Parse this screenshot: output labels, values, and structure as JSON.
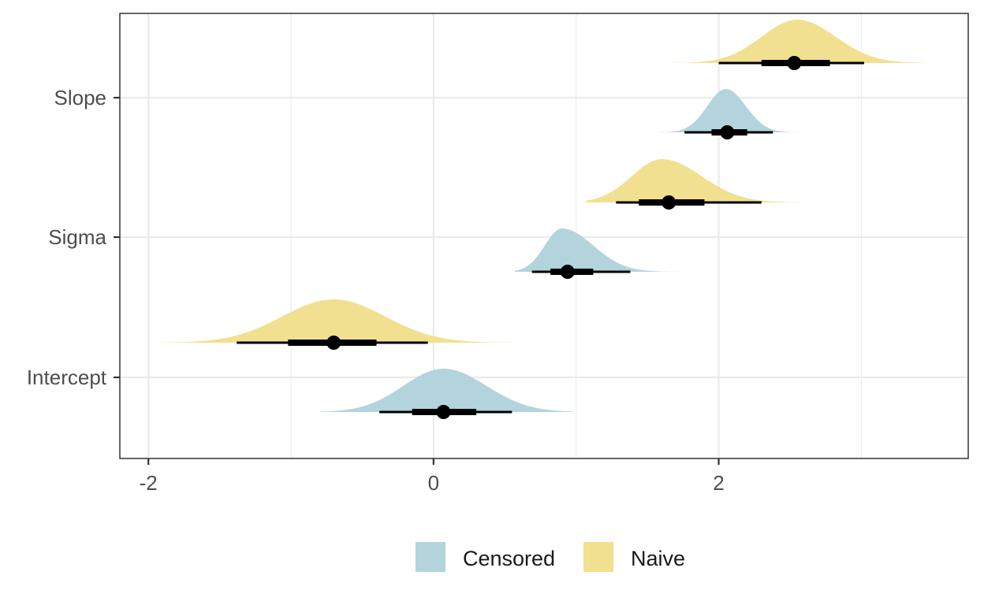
{
  "chart_data": {
    "type": "halfeye",
    "title": "",
    "xlabel": "",
    "ylabel": "",
    "xlim": [
      -2.2,
      3.75
    ],
    "x_ticks": [
      -2,
      0,
      2
    ],
    "x_tick_labels": [
      "-2",
      "0",
      "2"
    ],
    "categories": [
      "Intercept",
      "Sigma",
      "Slope"
    ],
    "grid": true,
    "legend_position": "bottom",
    "series": [
      {
        "name": "Censored",
        "color": "#b3d4dc",
        "estimates": [
          {
            "category": "Intercept",
            "median": 0.07,
            "q66": [
              -0.15,
              0.3
            ],
            "q95": [
              -0.38,
              0.55
            ],
            "density_range": [
              -0.8,
              0.97
            ],
            "peak": 0.07,
            "sd_left": 0.28,
            "sd_right": 0.3
          },
          {
            "category": "Sigma",
            "median": 0.94,
            "q66": [
              0.82,
              1.12
            ],
            "q95": [
              0.69,
              1.38
            ],
            "density_range": [
              0.57,
              1.85
            ],
            "peak": 0.9,
            "sd_left": 0.12,
            "sd_right": 0.22
          },
          {
            "category": "Slope",
            "median": 2.06,
            "q66": [
              1.95,
              2.2
            ],
            "q95": [
              1.76,
              2.38
            ],
            "density_range": [
              1.55,
              2.85
            ],
            "peak": 2.05,
            "sd_left": 0.13,
            "sd_right": 0.14
          }
        ]
      },
      {
        "name": "Naive",
        "color": "#f1e08f",
        "estimates": [
          {
            "category": "Intercept",
            "median": -0.7,
            "q66": [
              -1.02,
              -0.4
            ],
            "q95": [
              -1.38,
              -0.04
            ],
            "density_range": [
              -1.95,
              0.57
            ],
            "peak": -0.7,
            "sd_left": 0.36,
            "sd_right": 0.36
          },
          {
            "category": "Sigma",
            "median": 1.65,
            "q66": [
              1.44,
              1.9
            ],
            "q95": [
              1.28,
              2.3
            ],
            "density_range": [
              1.07,
              2.95
            ],
            "peak": 1.6,
            "sd_left": 0.21,
            "sd_right": 0.28
          },
          {
            "category": "Slope",
            "median": 2.53,
            "q66": [
              2.3,
              2.78
            ],
            "q95": [
              2.0,
              3.02
            ],
            "density_range": [
              1.45,
              3.45
            ],
            "peak": 2.55,
            "sd_left": 0.25,
            "sd_right": 0.27
          }
        ]
      }
    ]
  }
}
